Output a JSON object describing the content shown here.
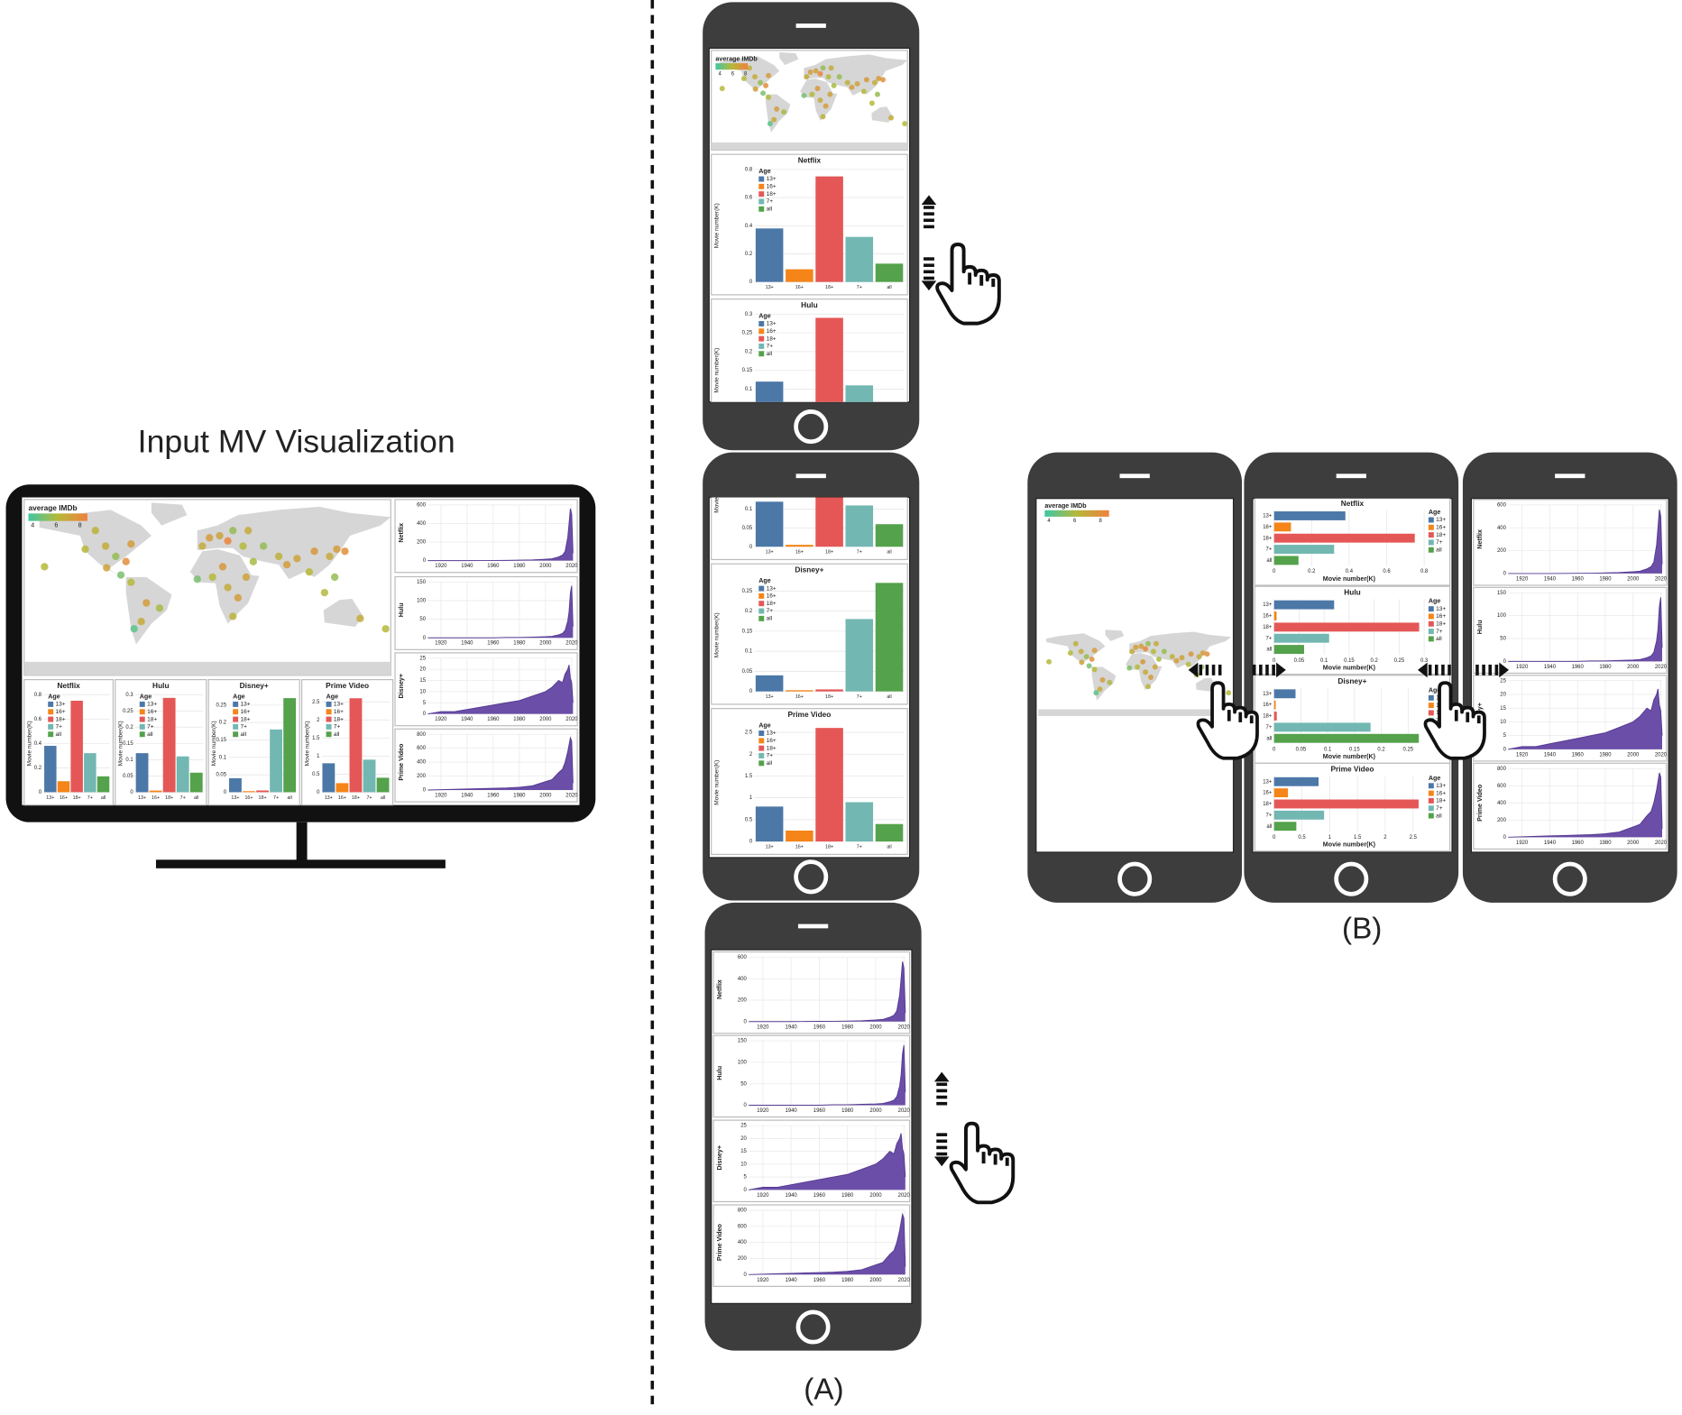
{
  "title": "Input MV Visualization",
  "labels": [
    "(A)",
    "(B)"
  ],
  "map": {
    "legend_title": "average IMDb",
    "legend_ticks": [
      4,
      6,
      8
    ],
    "color_scale": [
      "#3ec7a4",
      "#b5b83a",
      "#f0803c"
    ],
    "points": [
      {
        "lon": -100,
        "lat": 40,
        "imdb": 6.5
      },
      {
        "lon": -120,
        "lat": 37,
        "imdb": 6
      },
      {
        "lon": -75,
        "lat": 42,
        "imdb": 7
      },
      {
        "lon": -90,
        "lat": 30,
        "imdb": 5.5
      },
      {
        "lon": -110,
        "lat": 55,
        "imdb": 6.2
      },
      {
        "lon": -80,
        "lat": 25,
        "imdb": 7.5
      },
      {
        "lon": -99,
        "lat": 19,
        "imdb": 6.8
      },
      {
        "lon": -85,
        "lat": 12,
        "imdb": 5
      },
      {
        "lon": -75,
        "lat": 5,
        "imdb": 6
      },
      {
        "lon": -60,
        "lat": -15,
        "imdb": 7
      },
      {
        "lon": -47,
        "lat": -20,
        "imdb": 5.8
      },
      {
        "lon": -65,
        "lat": -33,
        "imdb": 6.5
      },
      {
        "lon": -72,
        "lat": -40,
        "imdb": 4.5
      },
      {
        "lon": -160,
        "lat": 20,
        "imdb": 6
      },
      {
        "lon": -5,
        "lat": 40,
        "imdb": 6.5
      },
      {
        "lon": 2,
        "lat": 48,
        "imdb": 7
      },
      {
        "lon": 12,
        "lat": 50,
        "imdb": 6.8
      },
      {
        "lon": 25,
        "lat": 55,
        "imdb": 5.5
      },
      {
        "lon": 20,
        "lat": 45,
        "imdb": 7.8
      },
      {
        "lon": 35,
        "lat": 40,
        "imdb": 6
      },
      {
        "lon": 40,
        "lat": 55,
        "imdb": 6.5
      },
      {
        "lon": 55,
        "lat": 40,
        "imdb": 5.5
      },
      {
        "lon": 70,
        "lat": 30,
        "imdb": 6.3
      },
      {
        "lon": 78,
        "lat": 22,
        "imdb": 7
      },
      {
        "lon": 88,
        "lat": 28,
        "imdb": 6.8
      },
      {
        "lon": 100,
        "lat": 15,
        "imdb": 6
      },
      {
        "lon": 105,
        "lat": 35,
        "imdb": 7.2
      },
      {
        "lon": 120,
        "lat": 30,
        "imdb": 6.5
      },
      {
        "lon": 135,
        "lat": 35,
        "imdb": 7.5
      },
      {
        "lon": 127,
        "lat": 37,
        "imdb": 7
      },
      {
        "lon": 115,
        "lat": -5,
        "imdb": 6
      },
      {
        "lon": 125,
        "lat": 10,
        "imdb": 5.5
      },
      {
        "lon": 5,
        "lat": 10,
        "imdb": 6
      },
      {
        "lon": -10,
        "lat": 8,
        "imdb": 5
      },
      {
        "lon": 20,
        "lat": 0,
        "imdb": 6.5
      },
      {
        "lon": 30,
        "lat": -10,
        "imdb": 7
      },
      {
        "lon": 25,
        "lat": -28,
        "imdb": 6.2
      },
      {
        "lon": 45,
        "lat": 25,
        "imdb": 5.8
      },
      {
        "lon": 38,
        "lat": 10,
        "imdb": 6.8
      },
      {
        "lon": 15,
        "lat": 20,
        "imdb": 7.2
      },
      {
        "lon": 150,
        "lat": -30,
        "imdb": 6.5
      },
      {
        "lon": 175,
        "lat": -40,
        "imdb": 6
      }
    ]
  },
  "age_legend": {
    "title": "Age",
    "categories": [
      "13+",
      "16+",
      "18+",
      "7+",
      "all"
    ],
    "colors": [
      "#4c78a8",
      "#f58518",
      "#e45756",
      "#72b7b2",
      "#54a24b"
    ]
  },
  "y_axis_label": "Movie number(K)",
  "bar_charts": [
    {
      "name": "Netflix",
      "values": [
        0.38,
        0.09,
        0.75,
        0.32,
        0.13
      ],
      "ylim": [
        0,
        0.8
      ],
      "yticks": [
        0,
        0.2,
        0.4,
        0.6,
        0.8
      ]
    },
    {
      "name": "Hulu",
      "values": [
        0.12,
        0.005,
        0.29,
        0.11,
        0.06
      ],
      "ylim": [
        0,
        0.3
      ],
      "yticks": [
        0,
        0.05,
        0.1,
        0.15,
        0.2,
        0.25,
        0.3
      ]
    },
    {
      "name": "Disney+",
      "values": [
        0.04,
        0.003,
        0.005,
        0.18,
        0.27
      ],
      "ylim": [
        0,
        0.28
      ],
      "yticks": [
        0,
        0.05,
        0.1,
        0.15,
        0.2,
        0.25
      ]
    },
    {
      "name": "Prime Video",
      "values": [
        0.8,
        0.25,
        2.6,
        0.9,
        0.4
      ],
      "ylim": [
        0,
        2.7
      ],
      "yticks": [
        0,
        0.5,
        1,
        1.5,
        2,
        2.5
      ]
    }
  ],
  "area_axis": {
    "x": [
      1910,
      1920,
      1930,
      1940,
      1950,
      1960,
      1970,
      1980,
      1990,
      2000,
      2005,
      2010,
      2013,
      2015,
      2017,
      2018,
      2019,
      2020,
      2021
    ],
    "xlim": [
      1910,
      2021
    ],
    "xticks": [
      1920,
      1940,
      1960,
      1980,
      2000,
      2020
    ]
  },
  "area_charts": [
    {
      "name": "Netflix",
      "values": [
        0,
        0,
        0,
        0,
        1,
        2,
        3,
        5,
        8,
        15,
        20,
        40,
        60,
        100,
        250,
        400,
        560,
        500,
        80
      ],
      "ylim": [
        0,
        600
      ],
      "yticks": [
        0,
        200,
        400,
        600
      ]
    },
    {
      "name": "Hulu",
      "values": [
        0,
        0,
        0,
        0,
        0,
        0,
        1,
        1,
        2,
        3,
        4,
        8,
        12,
        20,
        45,
        70,
        120,
        140,
        30
      ],
      "ylim": [
        0,
        150
      ],
      "yticks": [
        0,
        50,
        100,
        150
      ]
    },
    {
      "name": "Disney+",
      "values": [
        0,
        1,
        1,
        2,
        3,
        4,
        5,
        6,
        8,
        10,
        12,
        15,
        14,
        18,
        20,
        22,
        16,
        14,
        5
      ],
      "ylim": [
        0,
        25
      ],
      "yticks": [
        0,
        5,
        10,
        15,
        20,
        25
      ]
    },
    {
      "name": "Prime Video",
      "values": [
        0,
        5,
        10,
        15,
        20,
        25,
        30,
        40,
        60,
        120,
        150,
        250,
        300,
        400,
        550,
        650,
        750,
        700,
        100
      ],
      "ylim": [
        0,
        800
      ],
      "yticks": [
        0,
        200,
        400,
        600,
        800
      ]
    }
  ]
}
